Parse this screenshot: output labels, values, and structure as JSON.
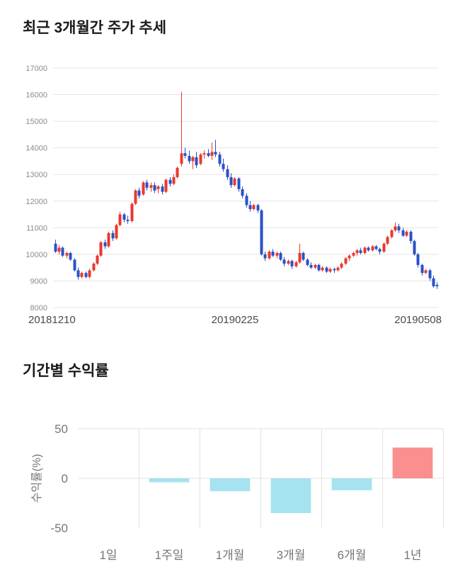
{
  "chart_data": [
    {
      "type": "candlestick",
      "title": "최근 3개월간 주가 추세",
      "x_labels": [
        "20181210",
        "20190225",
        "20190508"
      ],
      "ylim": [
        8000,
        17000
      ],
      "y_ticks": [
        17000,
        16000,
        15000,
        14000,
        13000,
        12000,
        11000,
        10000,
        9000,
        8000
      ],
      "up_color": "#e8392c",
      "down_color": "#2b50c8",
      "grid_color": "#e4e4e4",
      "candles": [
        [
          10400,
          10550,
          10050,
          10100
        ],
        [
          10100,
          10350,
          10000,
          10250
        ],
        [
          10250,
          10300,
          9900,
          9950
        ],
        [
          9950,
          10100,
          9850,
          10050
        ],
        [
          10050,
          10100,
          9750,
          9800
        ],
        [
          9800,
          9850,
          9350,
          9400
        ],
        [
          9400,
          9500,
          9050,
          9150
        ],
        [
          9150,
          9350,
          9100,
          9300
        ],
        [
          9300,
          9350,
          9100,
          9150
        ],
        [
          9150,
          9450,
          9100,
          9400
        ],
        [
          9400,
          9700,
          9350,
          9650
        ],
        [
          9650,
          10000,
          9600,
          9950
        ],
        [
          9950,
          10500,
          9900,
          10450
        ],
        [
          10450,
          10550,
          10200,
          10300
        ],
        [
          10300,
          10850,
          10250,
          10800
        ],
        [
          10800,
          10900,
          10500,
          10600
        ],
        [
          10600,
          11150,
          10550,
          11100
        ],
        [
          11100,
          11600,
          11050,
          11500
        ],
        [
          11500,
          11550,
          11200,
          11300
        ],
        [
          11300,
          11450,
          11150,
          11250
        ],
        [
          11250,
          11950,
          11200,
          11900
        ],
        [
          11900,
          12450,
          11850,
          12400
        ],
        [
          12400,
          12500,
          12100,
          12200
        ],
        [
          12250,
          12750,
          12200,
          12700
        ],
        [
          12700,
          12800,
          12400,
          12500
        ],
        [
          12500,
          12700,
          12350,
          12600
        ],
        [
          12600,
          12700,
          12300,
          12400
        ],
        [
          12450,
          12600,
          12300,
          12550
        ],
        [
          12550,
          12650,
          12250,
          12350
        ],
        [
          12350,
          12850,
          12300,
          12800
        ],
        [
          12800,
          12900,
          12550,
          12650
        ],
        [
          12650,
          13000,
          12600,
          12900
        ],
        [
          12900,
          13300,
          12850,
          13250
        ],
        [
          13400,
          16100,
          13300,
          13800
        ],
        [
          13800,
          14000,
          13600,
          13700
        ],
        [
          13700,
          13900,
          13400,
          13500
        ],
        [
          13500,
          13700,
          13200,
          13650
        ],
        [
          13650,
          13850,
          13250,
          13350
        ],
        [
          13400,
          13800,
          13350,
          13750
        ],
        [
          13750,
          13900,
          13600,
          13800
        ],
        [
          13800,
          13950,
          13650,
          13700
        ],
        [
          13700,
          14200,
          13550,
          13850
        ],
        [
          13850,
          14300,
          13650,
          13750
        ],
        [
          13750,
          13850,
          13300,
          13400
        ],
        [
          13400,
          13600,
          13100,
          13200
        ],
        [
          13200,
          13350,
          12800,
          12900
        ],
        [
          12900,
          13050,
          12500,
          12600
        ],
        [
          12600,
          12900,
          12550,
          12850
        ],
        [
          12850,
          12900,
          12350,
          12450
        ],
        [
          12450,
          12550,
          12100,
          12200
        ],
        [
          12200,
          12300,
          11750,
          11850
        ],
        [
          11850,
          12000,
          11600,
          11700
        ],
        [
          11700,
          11900,
          11650,
          11850
        ],
        [
          11850,
          11900,
          11550,
          11650
        ],
        [
          11650,
          11700,
          9950,
          10000
        ],
        [
          10000,
          10100,
          9750,
          9850
        ],
        [
          9850,
          10150,
          9800,
          10100
        ],
        [
          10100,
          10200,
          9900,
          9950
        ],
        [
          9950,
          10100,
          9850,
          10050
        ],
        [
          10050,
          10100,
          9750,
          9800
        ],
        [
          9800,
          9900,
          9550,
          9650
        ],
        [
          9650,
          9800,
          9600,
          9750
        ],
        [
          9750,
          9800,
          9450,
          9550
        ],
        [
          9550,
          9750,
          9500,
          9700
        ],
        [
          9700,
          10400,
          9650,
          10050
        ],
        [
          10050,
          10100,
          9750,
          9800
        ],
        [
          9800,
          9850,
          9550,
          9600
        ],
        [
          9600,
          9700,
          9450,
          9500
        ],
        [
          9500,
          9650,
          9450,
          9600
        ],
        [
          9600,
          9650,
          9350,
          9400
        ],
        [
          9400,
          9550,
          9350,
          9500
        ],
        [
          9500,
          9550,
          9300,
          9350
        ],
        [
          9350,
          9500,
          9300,
          9450
        ],
        [
          9450,
          9500,
          9300,
          9400
        ],
        [
          9400,
          9550,
          9350,
          9500
        ],
        [
          9500,
          9700,
          9450,
          9650
        ],
        [
          9650,
          9900,
          9600,
          9850
        ],
        [
          9850,
          10000,
          9750,
          9950
        ],
        [
          9950,
          10100,
          9900,
          10050
        ],
        [
          10050,
          10200,
          9950,
          10150
        ],
        [
          10150,
          10250,
          10000,
          10050
        ],
        [
          10050,
          10300,
          10000,
          10250
        ],
        [
          10250,
          10300,
          10100,
          10150
        ],
        [
          10150,
          10350,
          10100,
          10300
        ],
        [
          10300,
          10350,
          10150,
          10200
        ],
        [
          10200,
          10250,
          10000,
          10100
        ],
        [
          10100,
          10450,
          10050,
          10400
        ],
        [
          10400,
          10700,
          10350,
          10650
        ],
        [
          10650,
          10950,
          10600,
          10900
        ],
        [
          10900,
          11200,
          10850,
          11050
        ],
        [
          11050,
          11150,
          10800,
          10900
        ],
        [
          10900,
          11000,
          10650,
          10700
        ],
        [
          10700,
          10900,
          10650,
          10850
        ],
        [
          10850,
          10900,
          10400,
          10500
        ],
        [
          10500,
          10550,
          9950,
          10000
        ],
        [
          10000,
          10050,
          9500,
          9600
        ],
        [
          9600,
          9650,
          9200,
          9300
        ],
        [
          9300,
          9450,
          9250,
          9400
        ],
        [
          9400,
          9450,
          9000,
          9100
        ],
        [
          9100,
          9200,
          8750,
          8800
        ],
        [
          8850,
          8950,
          8700,
          8800
        ]
      ]
    },
    {
      "type": "bar",
      "title": "기간별 수익률",
      "ylabel": "수익률(%)",
      "categories": [
        "1일",
        "1주일",
        "1개월",
        "3개월",
        "6개월",
        "1년"
      ],
      "values": [
        0,
        -4,
        -13,
        -35,
        -12,
        31
      ],
      "y_ticks": [
        50,
        0,
        -50
      ],
      "ylim": [
        -50,
        50
      ],
      "positive_color": "#f98f8f",
      "negative_color": "#a5e3f0",
      "grid_color": "#e2e2e2"
    }
  ]
}
